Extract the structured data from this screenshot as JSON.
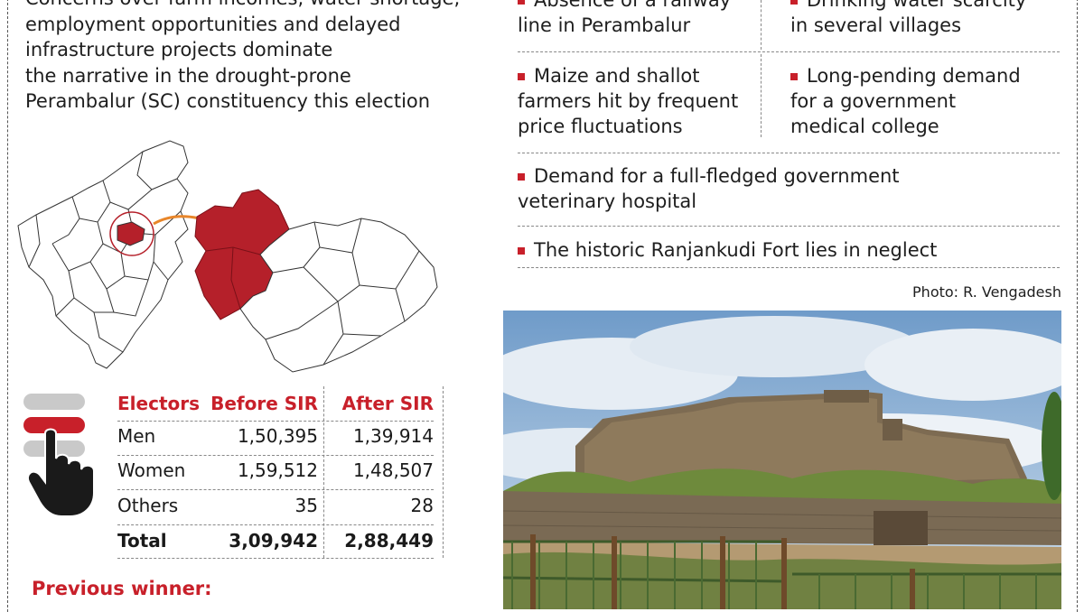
{
  "intro": {
    "lines": [
      "Concerns over farm incomes, water shortage,",
      "employment opportunities and delayed",
      "infrastructure projects dominate",
      "the narrative in the drought-prone",
      "Perambalur (SC) constituency this election"
    ]
  },
  "issues": [
    "Absence of a railway|line in Perambalur",
    "Drinking water scarcity|in several villages",
    "Maize and shallot|farmers hit by frequent|price fluctuations",
    "Long-pending demand|for a government|medical college",
    "Demand for a full-fledged government|veterinary hospital",
    "The historic Ranjankudi Fort lies in neglect"
  ],
  "photo_credit": "Photo: R. Vengadesh",
  "table": {
    "headers": [
      "Electors",
      "Before SIR",
      "After SIR"
    ],
    "rows": [
      [
        "Men",
        "1,50,395",
        "1,39,914"
      ],
      [
        "Women",
        "1,59,512",
        "1,48,507"
      ],
      [
        "Others",
        "35",
        "28"
      ],
      [
        "Total",
        "3,09,942",
        "2,88,449"
      ]
    ]
  },
  "previous_winner_label": "Previous winner:",
  "colors": {
    "accent": "#c8202a",
    "map_highlight": "#b5202a",
    "arrow": "#e8862a"
  },
  "icons": [
    "ballot-hand-icon",
    "tamil-nadu-map",
    "constituency-map",
    "ranjankudi-fort-photo"
  ]
}
